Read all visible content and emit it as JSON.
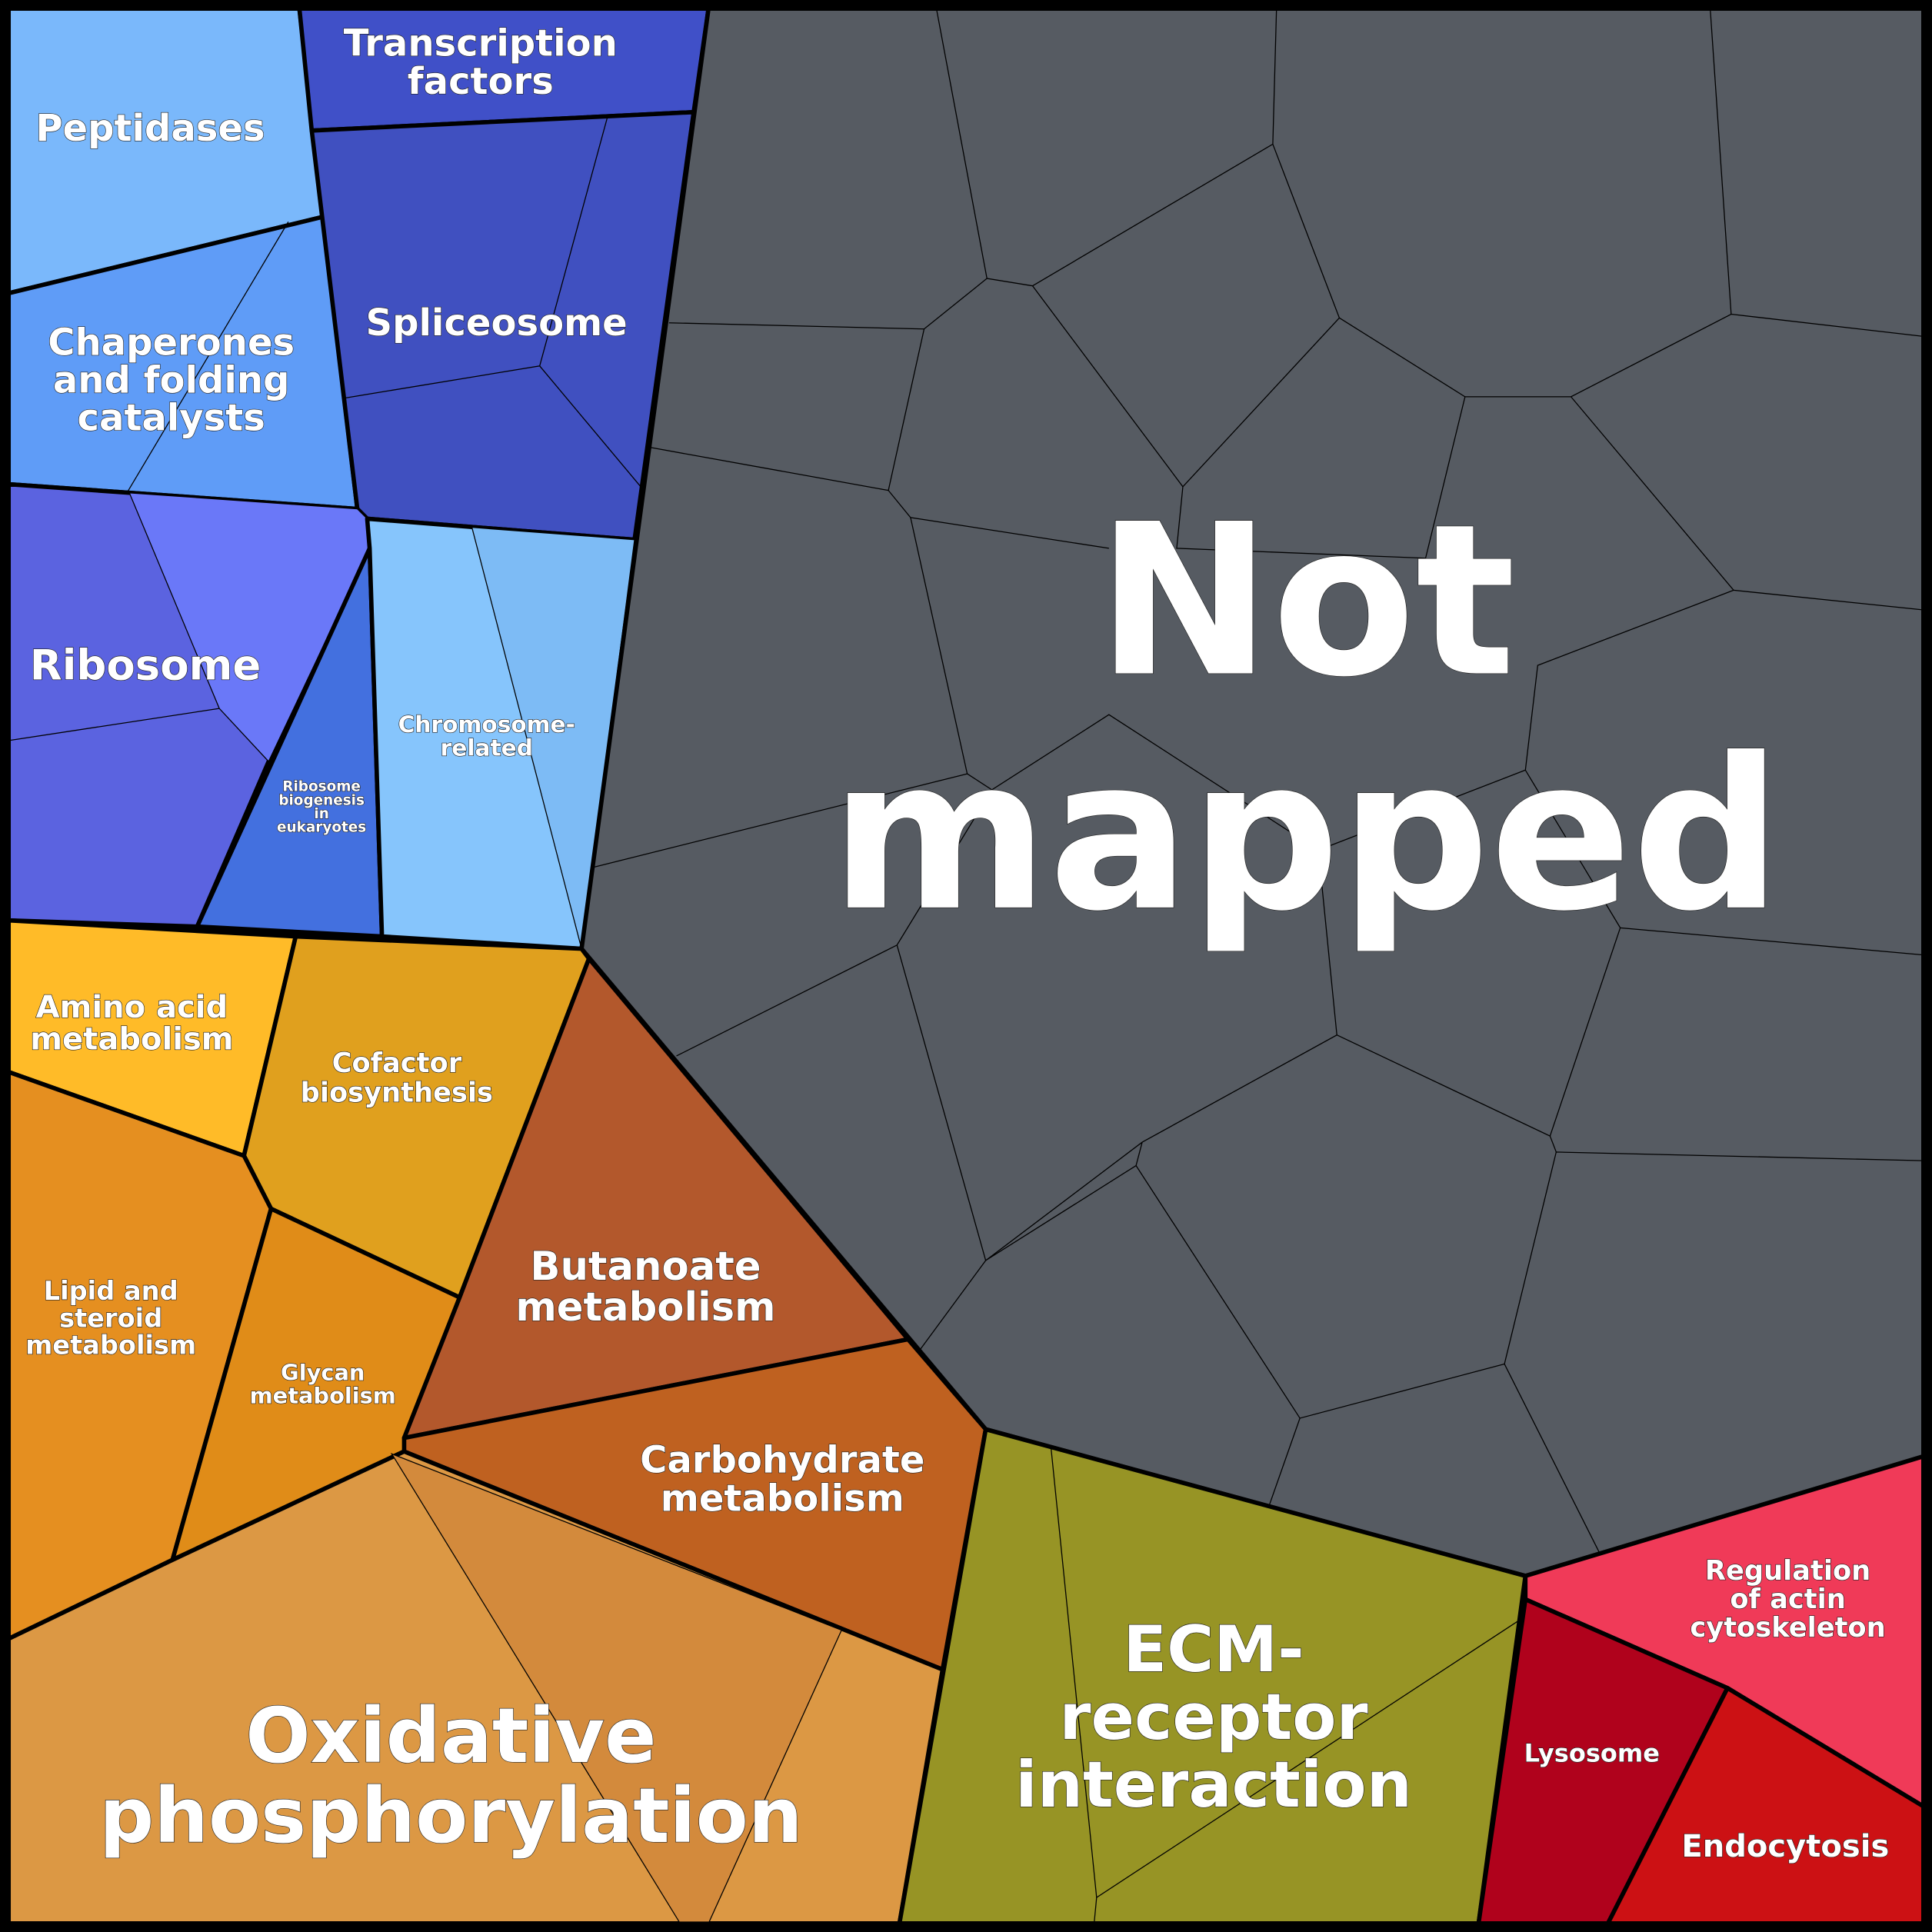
{
  "regions": [
    {
      "lines": [
        "Peptidases"
      ]
    },
    {
      "lines": [
        "Transcription",
        "factors"
      ]
    },
    {
      "lines": [
        "Spliceosome"
      ]
    },
    {
      "lines": [
        "Chaperones",
        "and folding",
        "catalysts"
      ]
    },
    {
      "lines": [
        "Ribosome"
      ]
    },
    {
      "lines": [
        "Ribosome",
        "biogenesis",
        "in",
        "eukaryotes"
      ]
    },
    {
      "lines": [
        "Chromosome-",
        "related"
      ]
    },
    {
      "lines": [
        "Not",
        "mapped"
      ]
    },
    {
      "lines": [
        "Amino acid",
        "metabolism"
      ]
    },
    {
      "lines": [
        "Cofactor",
        "biosynthesis"
      ]
    },
    {
      "lines": [
        "Lipid and",
        "steroid",
        "metabolism"
      ]
    },
    {
      "lines": [
        "Glycan",
        "metabolism"
      ]
    },
    {
      "lines": [
        "Butanoate",
        "metabolism"
      ]
    },
    {
      "lines": [
        "Carbohydrate",
        "metabolism"
      ]
    },
    {
      "lines": [
        "Oxidative",
        "phosphorylation"
      ]
    },
    {
      "lines": [
        "ECM-",
        "receptor",
        "interaction"
      ]
    },
    {
      "lines": [
        "Regulation",
        "of actin",
        "cytoskeleton"
      ]
    },
    {
      "lines": [
        "Lysosome"
      ]
    },
    {
      "lines": [
        "Endocytosis"
      ]
    }
  ]
}
